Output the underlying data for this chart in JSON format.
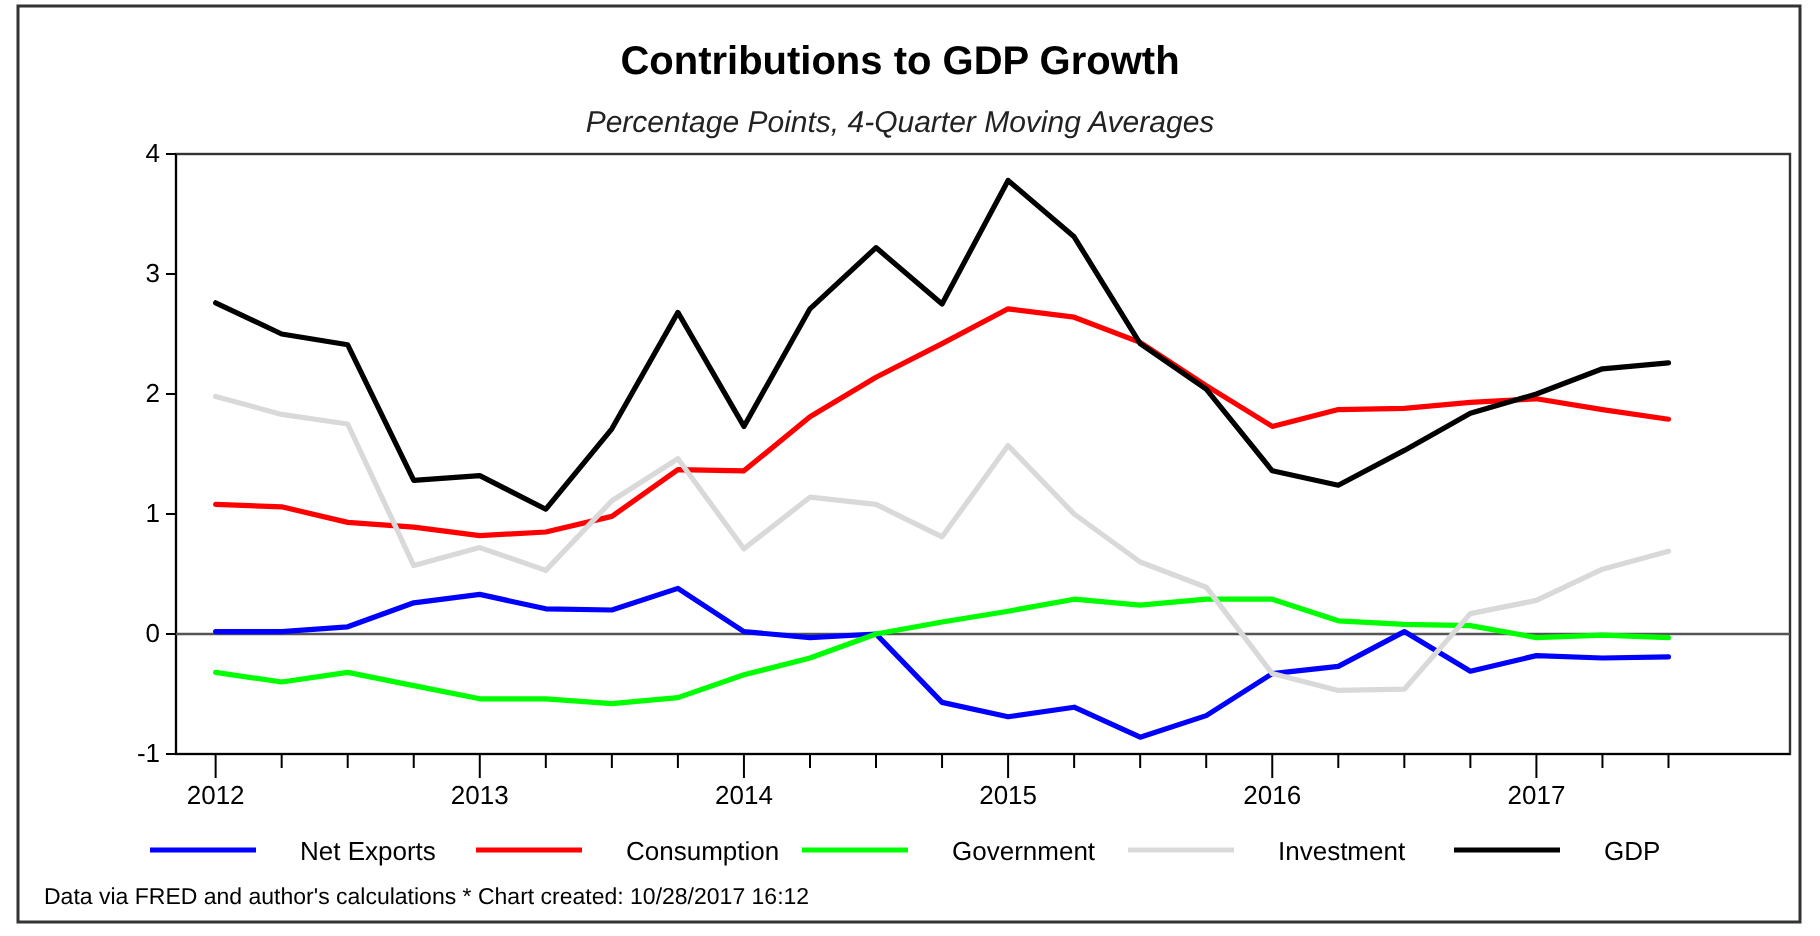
{
  "chart_data": {
    "type": "line",
    "title": "Contributions to GDP Growth",
    "subtitle": "Percentage Points, 4-Quarter Moving Averages",
    "annotations": [
      "Data via FRED and author's calculations * Chart created: 10/28/2017 16:12"
    ],
    "x": [
      2012,
      2012.25,
      2012.5,
      2012.75,
      2013,
      2013.25,
      2013.5,
      2013.75,
      2014,
      2014.25,
      2014.5,
      2014.75,
      2015,
      2015.25,
      2015.5,
      2015.75,
      2016,
      2016.25,
      2016.5,
      2016.75,
      2017,
      2017.25,
      2017.5
    ],
    "xlim": [
      2011.85,
      2017.96
    ],
    "xticks": [
      2012,
      2013,
      2014,
      2015,
      2016,
      2017
    ],
    "ylim": [
      -1,
      4
    ],
    "yticks": [
      -1,
      0,
      1,
      2,
      3,
      4
    ],
    "ref_lines": [
      {
        "axis": "y",
        "value": 0,
        "color": "#555555"
      }
    ],
    "legend": "bottom",
    "grid": false,
    "marker": "none",
    "line_style": "solid",
    "series": [
      {
        "name": "Net Exports",
        "color": "#0000ff",
        "values": [
          0.02,
          0.02,
          0.06,
          0.26,
          0.33,
          0.21,
          0.2,
          0.38,
          0.02,
          -0.03,
          0,
          -0.57,
          -0.69,
          -0.61,
          -0.86,
          -0.68,
          -0.33,
          -0.27,
          0.02,
          -0.31,
          -0.18,
          -0.2,
          -0.19
        ]
      },
      {
        "name": "Consumption",
        "color": "#ff0000",
        "values": [
          1.08,
          1.06,
          0.93,
          0.89,
          0.82,
          0.85,
          0.98,
          1.37,
          1.36,
          1.81,
          2.14,
          2.42,
          2.71,
          2.64,
          2.43,
          2.07,
          1.73,
          1.87,
          1.88,
          1.93,
          1.96,
          1.87,
          1.79
        ]
      },
      {
        "name": "Government",
        "color": "#00ff00",
        "values": [
          -0.32,
          -0.4,
          -0.32,
          -0.43,
          -0.54,
          -0.54,
          -0.58,
          -0.53,
          -0.34,
          -0.2,
          0,
          0.1,
          0.19,
          0.29,
          0.24,
          0.29,
          0.29,
          0.11,
          0.08,
          0.07,
          -0.03,
          -0.01,
          -0.03
        ]
      },
      {
        "name": "Investment",
        "color": "#d9d9d9",
        "values": [
          1.98,
          1.83,
          1.75,
          0.57,
          0.72,
          0.53,
          1.11,
          1.46,
          0.71,
          1.14,
          1.08,
          0.81,
          1.57,
          1.0,
          0.6,
          0.39,
          -0.33,
          -0.47,
          -0.46,
          0.17,
          0.28,
          0.54,
          0.69
        ]
      },
      {
        "name": "GDP",
        "color": "#000000",
        "values": [
          2.76,
          2.5,
          2.41,
          1.28,
          1.32,
          1.04,
          1.71,
          2.68,
          1.73,
          2.71,
          3.22,
          2.75,
          3.78,
          3.31,
          2.42,
          2.04,
          1.36,
          1.24,
          1.53,
          1.84,
          2.0,
          2.21,
          2.26
        ]
      }
    ]
  }
}
